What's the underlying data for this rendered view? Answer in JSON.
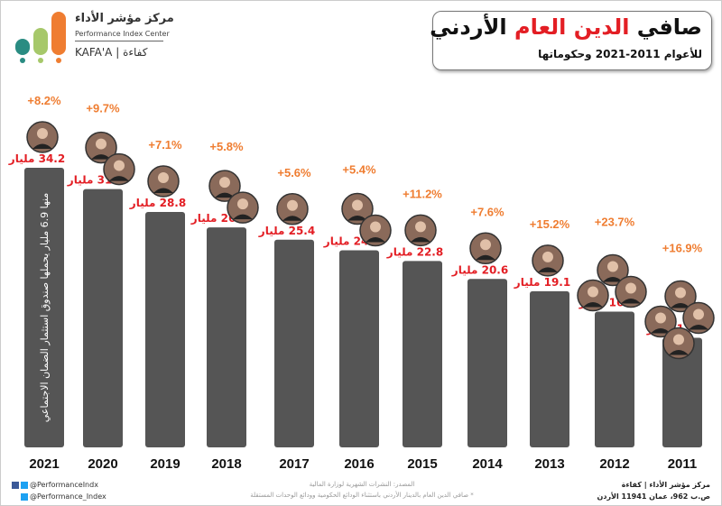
{
  "logo": {
    "name_ar": "مركز مؤشر الأداء",
    "name_en": "Performance Index Center",
    "brand": "KAFA'A | كفاءة",
    "colors": [
      "#2a8c82",
      "#a6c86a",
      "#ef7d31"
    ]
  },
  "header": {
    "title_part1": "صافي ",
    "title_highlight": "الدين العام",
    "title_part2": " الأردني",
    "subtitle": "للأعوام 2011-2021 وحكوماتها"
  },
  "chart_data": {
    "type": "bar",
    "title": "صافي الدين العام الأردني",
    "categories": [
      "2021",
      "2020",
      "2019",
      "2018",
      "2017",
      "2016",
      "2015",
      "2014",
      "2013",
      "2012",
      "2011"
    ],
    "values": [
      34.2,
      31.6,
      28.8,
      26.9,
      25.4,
      24.1,
      22.8,
      20.6,
      19.1,
      16.6,
      13.4
    ],
    "value_labels": [
      "34.2 مليار",
      "31.6 مليار",
      "28.8 مليار",
      "26.9 مليار",
      "25.4 مليار",
      "24.1 مليار",
      "22.8 مليار",
      "20.6 مليار",
      "19.1 مليار",
      "16.6 مليار",
      "13.4 مليار"
    ],
    "growth_labels": [
      "+8.2%",
      "+9.7%",
      "+7.1%",
      "+5.8%",
      "+5.6%",
      "+5.4%",
      "+11.2%",
      "+7.6%",
      "+15.2%",
      "+23.7%",
      "+16.9%"
    ],
    "governments_per_year": [
      1,
      2,
      1,
      2,
      1,
      2,
      1,
      1,
      1,
      3,
      4
    ],
    "bar_annotation": "منها 6.9 مليار يحملها صندوق استثمار الضمان الاجتماعي",
    "ylim": [
      0,
      36
    ],
    "grid": false,
    "colors": {
      "bar": "#555555",
      "value": "#e31e24",
      "growth": "#ef7d31",
      "year": "#111111"
    }
  },
  "footer": {
    "facebook": "@PerformanceIndx",
    "twitter": "@Performance_Index",
    "source": "المصدر: النشرات الشهرية لوزارة المالية",
    "note": "* صافي الدين العام بالدينار الأردني باستثناء الودائع الحكومية وودائع الوحدات المستقلة",
    "org": "مركز مؤشر الأداء | كفاءة",
    "address": "ص.ب 962، عمان 11941 الأردن"
  }
}
